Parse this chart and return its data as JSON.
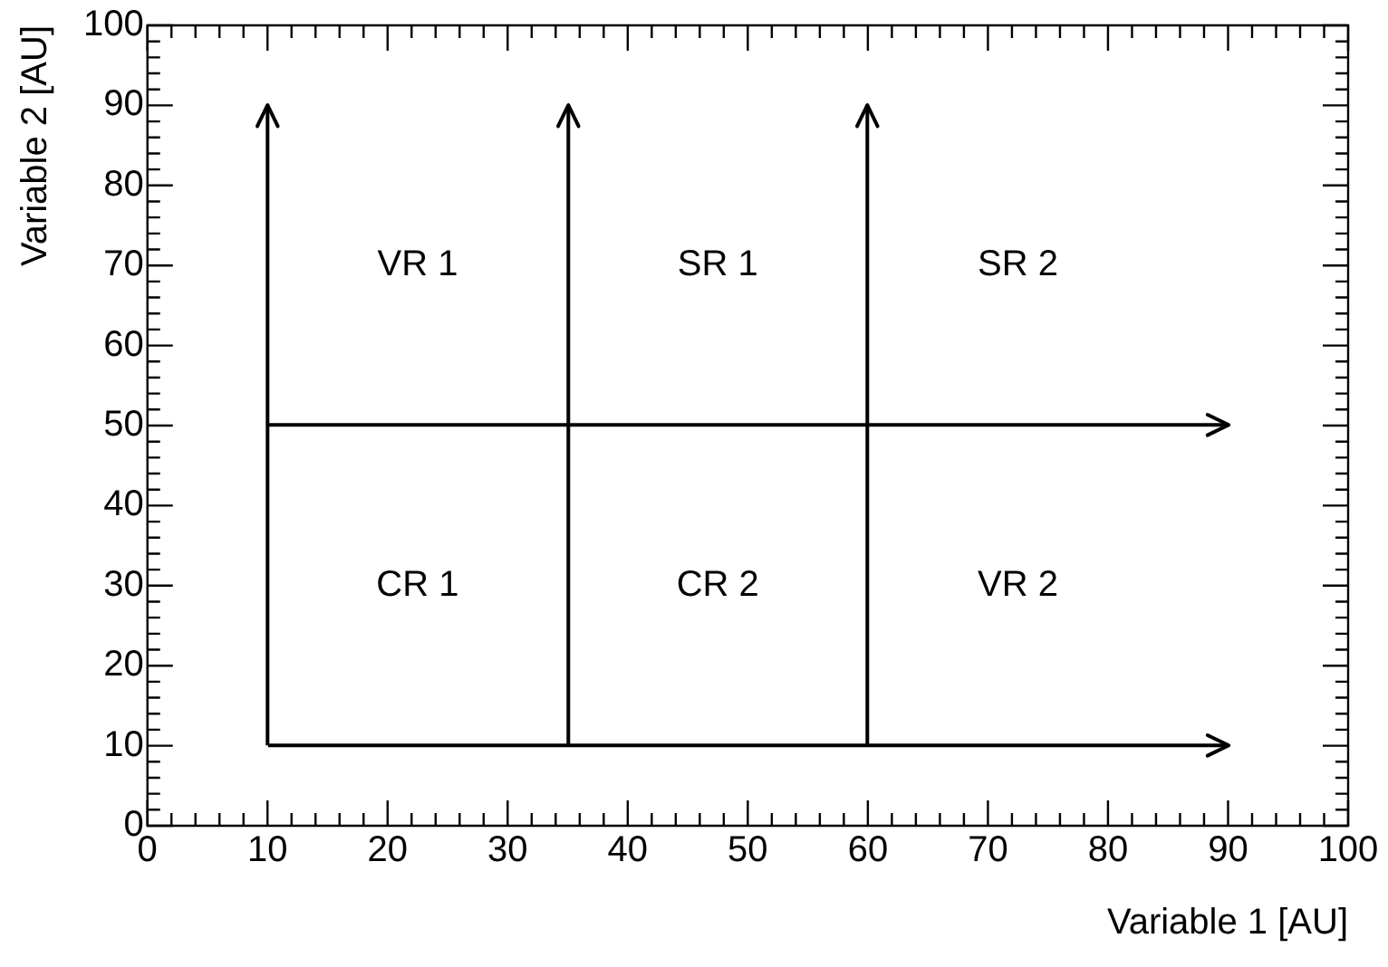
{
  "chart_data": {
    "type": "line",
    "xlabel": "Variable 1 [AU]",
    "ylabel": "Variable 2 [AU]",
    "xlim": [
      0,
      100
    ],
    "ylim": [
      0,
      100
    ],
    "xticks": [
      0,
      {
        "value": 2,
        "label": null
      },
      {
        "value": 4,
        "label": null
      },
      {
        "value": 6,
        "label": null
      },
      {
        "value": 8,
        "label": null
      },
      10,
      {
        "value": 12,
        "label": null
      },
      {
        "value": 14,
        "label": null
      },
      {
        "value": 16,
        "label": null
      },
      {
        "value": 18,
        "label": null
      },
      20,
      {
        "value": 22,
        "label": null
      },
      {
        "value": 24,
        "label": null
      },
      {
        "value": 26,
        "label": null
      },
      {
        "value": 28,
        "label": null
      },
      30,
      {
        "value": 32,
        "label": null
      },
      {
        "value": 34,
        "label": null
      },
      {
        "value": 36,
        "label": null
      },
      {
        "value": 38,
        "label": null
      },
      40,
      {
        "value": 42,
        "label": null
      },
      {
        "value": 44,
        "label": null
      },
      {
        "value": 46,
        "label": null
      },
      {
        "value": 48,
        "label": null
      },
      50,
      {
        "value": 52,
        "label": null
      },
      {
        "value": 54,
        "label": null
      },
      {
        "value": 56,
        "label": null
      },
      {
        "value": 58,
        "label": null
      },
      60,
      {
        "value": 62,
        "label": null
      },
      {
        "value": 64,
        "label": null
      },
      {
        "value": 66,
        "label": null
      },
      {
        "value": 68,
        "label": null
      },
      70,
      {
        "value": 72,
        "label": null
      },
      {
        "value": 74,
        "label": null
      },
      {
        "value": 76,
        "label": null
      },
      {
        "value": 78,
        "label": null
      },
      80,
      {
        "value": 82,
        "label": null
      },
      {
        "value": 84,
        "label": null
      },
      {
        "value": 86,
        "label": null
      },
      {
        "value": 88,
        "label": null
      },
      90,
      {
        "value": 92,
        "label": null
      },
      {
        "value": 94,
        "label": null
      },
      {
        "value": 96,
        "label": null
      },
      {
        "value": 98,
        "label": null
      },
      100
    ],
    "yticks": [
      0,
      {
        "value": 2,
        "label": null
      },
      {
        "value": 4,
        "label": null
      },
      {
        "value": 6,
        "label": null
      },
      {
        "value": 8,
        "label": null
      },
      10,
      {
        "value": 12,
        "label": null
      },
      {
        "value": 14,
        "label": null
      },
      {
        "value": 16,
        "label": null
      },
      {
        "value": 18,
        "label": null
      },
      20,
      {
        "value": 22,
        "label": null
      },
      {
        "value": 24,
        "label": null
      },
      {
        "value": 26,
        "label": null
      },
      {
        "value": 28,
        "label": null
      },
      30,
      {
        "value": 32,
        "label": null
      },
      {
        "value": 34,
        "label": null
      },
      {
        "value": 36,
        "label": null
      },
      {
        "value": 38,
        "label": null
      },
      40,
      {
        "value": 42,
        "label": null
      },
      {
        "value": 44,
        "label": null
      },
      {
        "value": 46,
        "label": null
      },
      {
        "value": 48,
        "label": null
      },
      50,
      {
        "value": 52,
        "label": null
      },
      {
        "value": 54,
        "label": null
      },
      {
        "value": 56,
        "label": null
      },
      {
        "value": 58,
        "label": null
      },
      60,
      {
        "value": 62,
        "label": null
      },
      {
        "value": 64,
        "label": null
      },
      {
        "value": 66,
        "label": null
      },
      {
        "value": 68,
        "label": null
      },
      70,
      {
        "value": 72,
        "label": null
      },
      {
        "value": 74,
        "label": null
      },
      {
        "value": 76,
        "label": null
      },
      {
        "value": 78,
        "label": null
      },
      80,
      {
        "value": 82,
        "label": null
      },
      {
        "value": 84,
        "label": null
      },
      {
        "value": 86,
        "label": null
      },
      {
        "value": 88,
        "label": null
      },
      90,
      {
        "value": 92,
        "label": null
      },
      {
        "value": 94,
        "label": null
      },
      {
        "value": 96,
        "label": null
      },
      {
        "value": 98,
        "label": null
      },
      100
    ],
    "series": [
      {
        "color": "#000000",
        "x": [
          10,
          10
        ],
        "values": [
          10,
          90
        ]
      },
      {
        "color": "#000000",
        "x": [
          35,
          35
        ],
        "values": [
          10,
          90
        ]
      },
      {
        "color": "#000000",
        "x": [
          60,
          60
        ],
        "values": [
          10,
          90
        ]
      },
      {
        "color": "#000000",
        "x": [
          10,
          90
        ],
        "values": [
          10,
          10
        ]
      },
      {
        "color": "#000000",
        "x": [
          10,
          90
        ],
        "values": [
          50,
          50
        ]
      }
    ],
    "annotations": [
      "VR 1",
      "SR 1",
      "SR 2",
      "CR 1",
      "CR 2",
      "VR 2"
    ],
    "grid": false,
    "legend": false,
    "line_style": "solid"
  }
}
